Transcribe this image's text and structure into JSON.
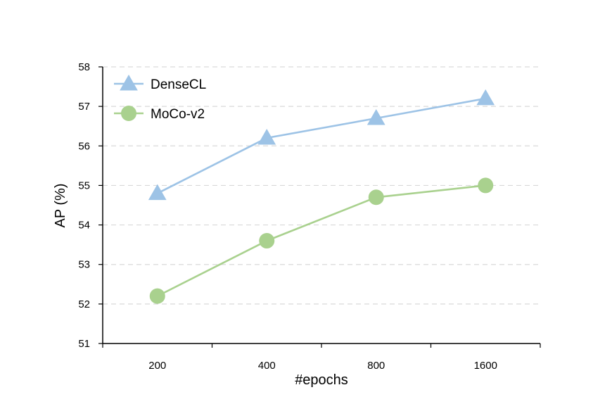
{
  "chart_data": {
    "type": "line",
    "title": "",
    "xlabel": "#epochs",
    "ylabel": "AP (%)",
    "categories": [
      "200",
      "400",
      "800",
      "1600"
    ],
    "ylim": [
      51,
      58
    ],
    "yticks": [
      51,
      52,
      53,
      54,
      55,
      56,
      57,
      58
    ],
    "grid": true,
    "legend_position": "top-left",
    "series": [
      {
        "name": "DenseCL",
        "values": [
          54.8,
          56.2,
          56.7,
          57.2
        ],
        "color": "#9dc3e6",
        "marker": "triangle"
      },
      {
        "name": "MoCo-v2",
        "values": [
          52.2,
          53.6,
          54.7,
          55.0
        ],
        "color": "#a9d18e",
        "marker": "circle"
      }
    ]
  }
}
